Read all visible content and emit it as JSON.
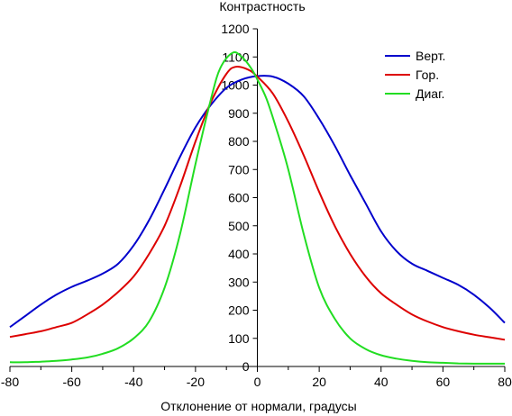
{
  "chart_data": {
    "type": "line",
    "title": "Контрастность",
    "xlabel": "Отклонение от нормали, градусы",
    "ylabel": "",
    "xlim": [
      -80,
      80
    ],
    "ylim": [
      0,
      1200
    ],
    "xticks": [
      -80,
      -60,
      -40,
      -20,
      0,
      20,
      40,
      60,
      80
    ],
    "yticks": [
      0,
      100,
      200,
      300,
      400,
      500,
      600,
      700,
      800,
      900,
      1000,
      1100,
      1200
    ],
    "grid": false,
    "legend_position": "top-right",
    "series": [
      {
        "name": "Верт.",
        "color": "#0000cc",
        "points": [
          [
            -80,
            140
          ],
          [
            -75,
            180
          ],
          [
            -70,
            220
          ],
          [
            -65,
            255
          ],
          [
            -60,
            283
          ],
          [
            -55,
            305
          ],
          [
            -50,
            330
          ],
          [
            -45,
            365
          ],
          [
            -40,
            430
          ],
          [
            -35,
            520
          ],
          [
            -30,
            630
          ],
          [
            -25,
            745
          ],
          [
            -20,
            850
          ],
          [
            -15,
            930
          ],
          [
            -10,
            990
          ],
          [
            -5,
            1020
          ],
          [
            0,
            1032
          ],
          [
            5,
            1030
          ],
          [
            10,
            1005
          ],
          [
            15,
            960
          ],
          [
            20,
            880
          ],
          [
            25,
            785
          ],
          [
            30,
            680
          ],
          [
            35,
            580
          ],
          [
            40,
            480
          ],
          [
            45,
            410
          ],
          [
            50,
            365
          ],
          [
            55,
            340
          ],
          [
            60,
            315
          ],
          [
            65,
            290
          ],
          [
            70,
            255
          ],
          [
            75,
            210
          ],
          [
            80,
            155
          ]
        ]
      },
      {
        "name": "Гор.",
        "color": "#dd0000",
        "points": [
          [
            -80,
            105
          ],
          [
            -75,
            115
          ],
          [
            -70,
            125
          ],
          [
            -65,
            140
          ],
          [
            -60,
            155
          ],
          [
            -55,
            185
          ],
          [
            -50,
            220
          ],
          [
            -45,
            265
          ],
          [
            -40,
            320
          ],
          [
            -35,
            400
          ],
          [
            -30,
            500
          ],
          [
            -25,
            640
          ],
          [
            -20,
            800
          ],
          [
            -15,
            940
          ],
          [
            -10,
            1040
          ],
          [
            -7,
            1065
          ],
          [
            -3,
            1055
          ],
          [
            0,
            1030
          ],
          [
            5,
            970
          ],
          [
            10,
            870
          ],
          [
            15,
            750
          ],
          [
            20,
            620
          ],
          [
            25,
            500
          ],
          [
            30,
            400
          ],
          [
            35,
            320
          ],
          [
            40,
            260
          ],
          [
            45,
            220
          ],
          [
            50,
            185
          ],
          [
            55,
            160
          ],
          [
            60,
            140
          ],
          [
            65,
            125
          ],
          [
            70,
            113
          ],
          [
            75,
            104
          ],
          [
            80,
            95
          ]
        ]
      },
      {
        "name": "Диаг.",
        "color": "#22dd22",
        "points": [
          [
            -80,
            15
          ],
          [
            -75,
            15
          ],
          [
            -70,
            17
          ],
          [
            -65,
            20
          ],
          [
            -60,
            25
          ],
          [
            -55,
            32
          ],
          [
            -50,
            45
          ],
          [
            -45,
            65
          ],
          [
            -40,
            100
          ],
          [
            -35,
            160
          ],
          [
            -30,
            280
          ],
          [
            -25,
            470
          ],
          [
            -20,
            720
          ],
          [
            -15,
            950
          ],
          [
            -12,
            1060
          ],
          [
            -8,
            1115
          ],
          [
            -5,
            1100
          ],
          [
            -2,
            1060
          ],
          [
            0,
            1020
          ],
          [
            3,
            950
          ],
          [
            6,
            850
          ],
          [
            10,
            700
          ],
          [
            15,
            470
          ],
          [
            20,
            280
          ],
          [
            25,
            170
          ],
          [
            30,
            100
          ],
          [
            35,
            62
          ],
          [
            40,
            40
          ],
          [
            45,
            28
          ],
          [
            50,
            20
          ],
          [
            55,
            15
          ],
          [
            60,
            13
          ],
          [
            65,
            11
          ],
          [
            70,
            10
          ],
          [
            75,
            10
          ],
          [
            80,
            10
          ]
        ]
      }
    ]
  }
}
